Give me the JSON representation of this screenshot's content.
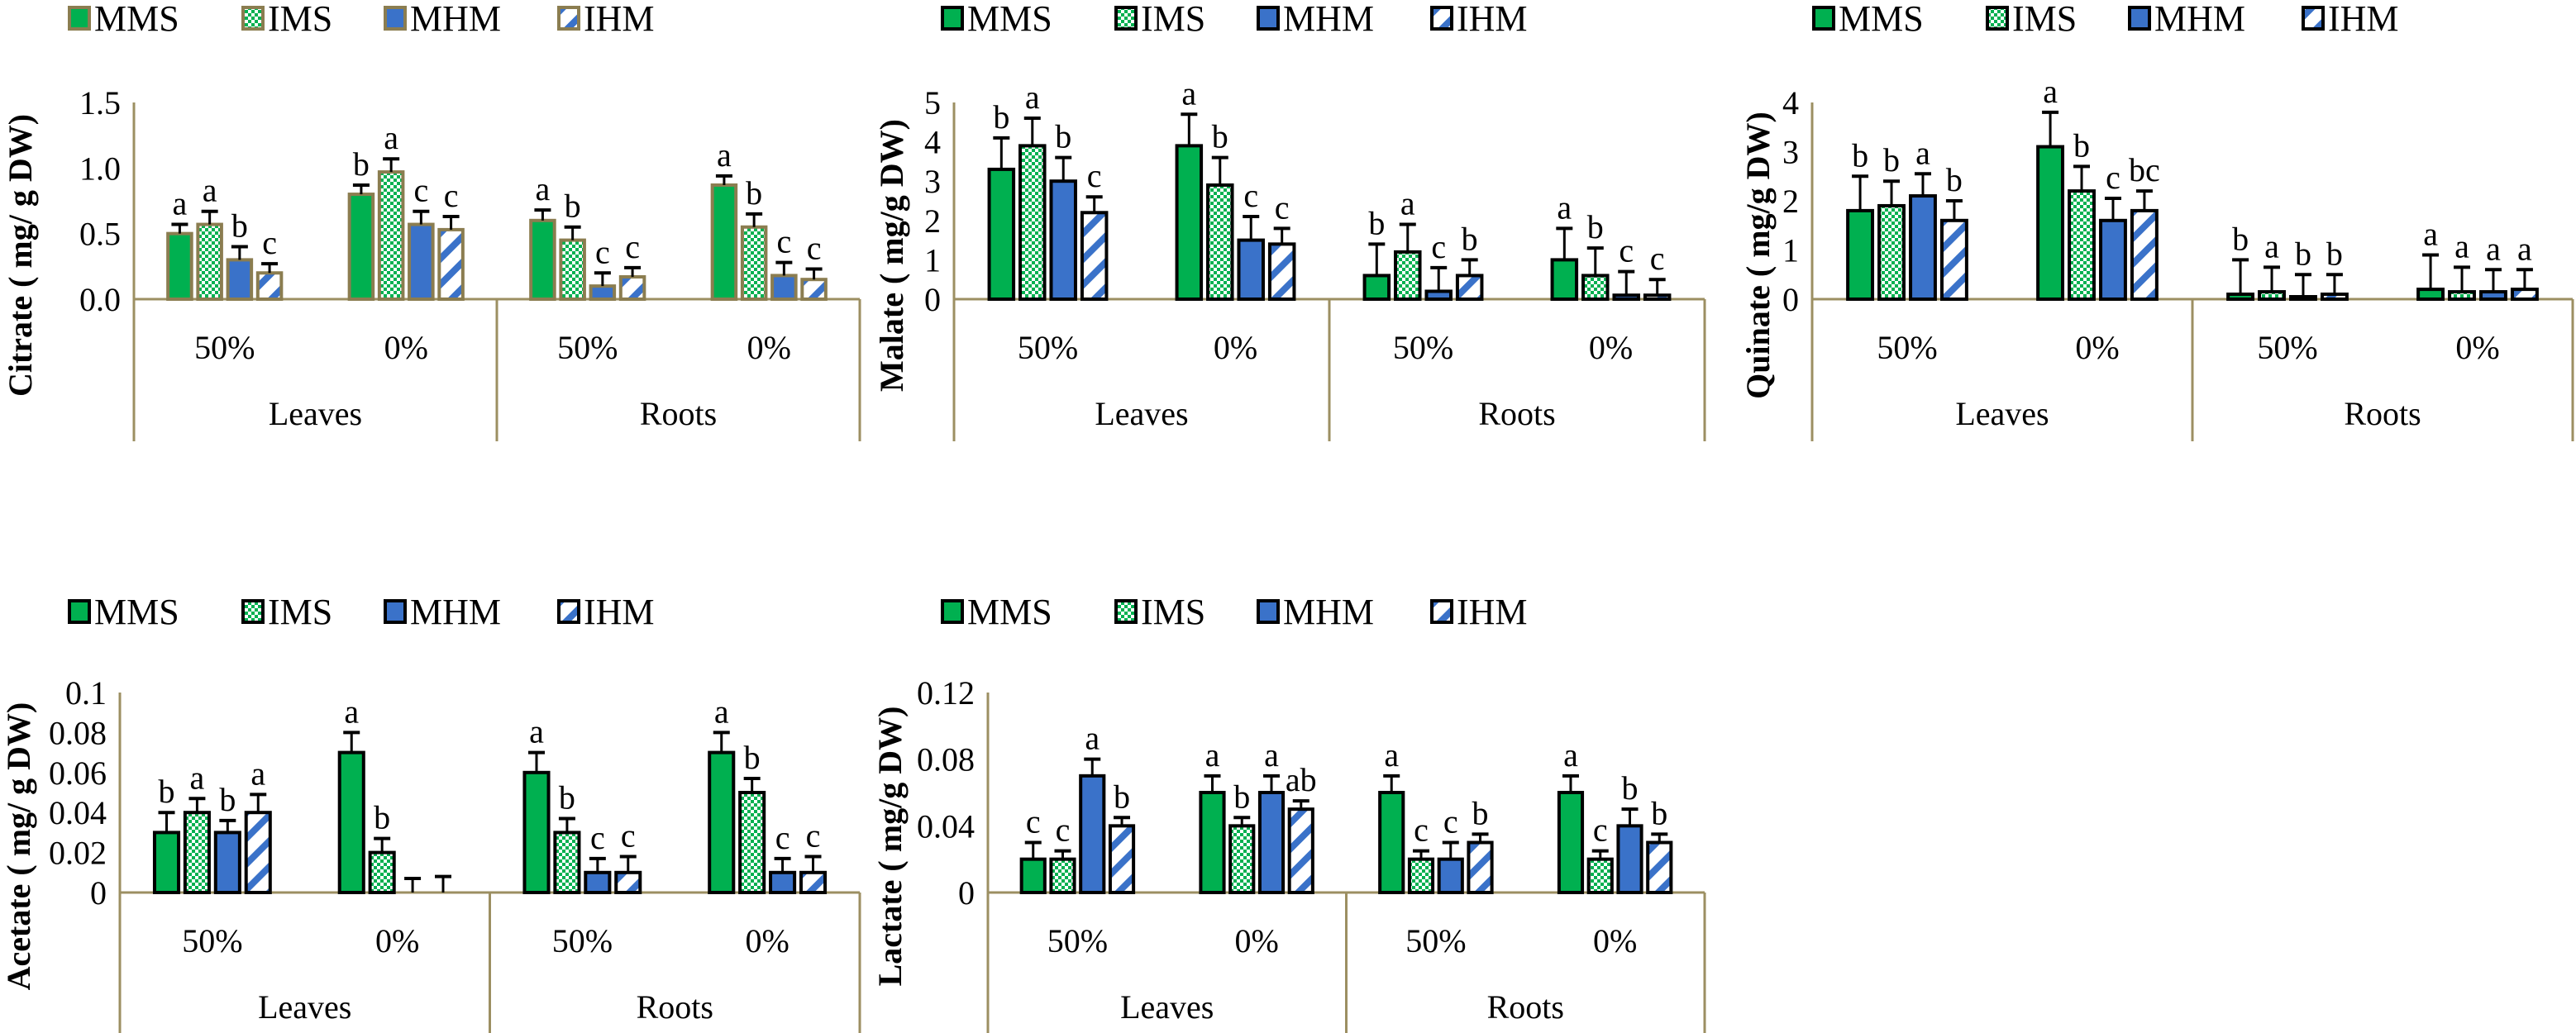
{
  "colors": {
    "MMS": "#00b050",
    "IMS": "#00b050",
    "MHM": "#3a72c9",
    "IHM": "#3a72c9",
    "axis": "#9c8f62"
  },
  "chart_data": [
    {
      "type": "bar",
      "title": "",
      "ylabel": "Citrate ( mg/ g DW)",
      "xlabel": "",
      "ylim": [
        0,
        1.5
      ],
      "yticks": [
        "0.0",
        "0.5",
        "1.0",
        "1.5"
      ],
      "ytick_values": [
        0,
        0.5,
        1.0,
        1.5
      ],
      "legend": [
        "MMS",
        "IMS",
        "MHM",
        "IHM"
      ],
      "legend_position": "top",
      "groups": [
        "Leaves",
        "Roots"
      ],
      "categories": [
        "50%",
        "0%",
        "50%",
        "0%"
      ],
      "series": [
        {
          "name": "MMS",
          "values": [
            0.5,
            0.8,
            0.6,
            0.87
          ],
          "errors": [
            0.07,
            0.07,
            0.08,
            0.07
          ],
          "letters": [
            "a",
            "b",
            "a",
            "a"
          ]
        },
        {
          "name": "IMS",
          "values": [
            0.57,
            0.97,
            0.45,
            0.55
          ],
          "errors": [
            0.1,
            0.1,
            0.1,
            0.1
          ],
          "letters": [
            "a",
            "a",
            "b",
            "b"
          ]
        },
        {
          "name": "MHM",
          "values": [
            0.3,
            0.57,
            0.1,
            0.18
          ],
          "errors": [
            0.1,
            0.1,
            0.1,
            0.1
          ],
          "letters": [
            "b",
            "c",
            "c",
            "c"
          ]
        },
        {
          "name": "IHM",
          "values": [
            0.2,
            0.53,
            0.17,
            0.15
          ],
          "errors": [
            0.07,
            0.1,
            0.07,
            0.08
          ],
          "letters": [
            "c",
            "c",
            "c",
            "c"
          ]
        }
      ]
    },
    {
      "type": "bar",
      "title": "",
      "ylabel": "Malate ( mg/g DW)",
      "xlabel": "",
      "ylim": [
        0,
        5
      ],
      "yticks": [
        "0",
        "1",
        "2",
        "3",
        "4",
        "5"
      ],
      "ytick_values": [
        0,
        1,
        2,
        3,
        4,
        5
      ],
      "legend": [
        "MMS",
        "IMS",
        "MHM",
        "IHM"
      ],
      "legend_position": "top",
      "groups": [
        "Leaves",
        "Roots"
      ],
      "categories": [
        "50%",
        "0%",
        "50%",
        "0%"
      ],
      "series": [
        {
          "name": "MMS",
          "values": [
            3.3,
            3.9,
            0.6,
            1.0
          ],
          "errors": [
            0.8,
            0.8,
            0.8,
            0.8
          ],
          "letters": [
            "b",
            "a",
            "b",
            "a"
          ]
        },
        {
          "name": "IMS",
          "values": [
            3.9,
            2.9,
            1.2,
            0.6
          ],
          "errors": [
            0.7,
            0.7,
            0.7,
            0.7
          ],
          "letters": [
            "a",
            "b",
            "a",
            "b"
          ]
        },
        {
          "name": "MHM",
          "values": [
            3.0,
            1.5,
            0.2,
            0.1
          ],
          "errors": [
            0.6,
            0.6,
            0.6,
            0.6
          ],
          "letters": [
            "b",
            "c",
            "c",
            "c"
          ]
        },
        {
          "name": "IHM",
          "values": [
            2.2,
            1.4,
            0.6,
            0.1
          ],
          "errors": [
            0.4,
            0.4,
            0.4,
            0.4
          ],
          "letters": [
            "c",
            "c",
            "b",
            "c"
          ]
        }
      ]
    },
    {
      "type": "bar",
      "title": "",
      "ylabel": "Quinate ( mg/g DW)",
      "xlabel": "",
      "ylim": [
        0,
        4
      ],
      "yticks": [
        "0",
        "1",
        "2",
        "3",
        "4"
      ],
      "ytick_values": [
        0,
        1,
        2,
        3,
        4
      ],
      "legend": [
        "MMS",
        "IMS",
        "MHM",
        "IHM"
      ],
      "legend_position": "top",
      "groups": [
        "Leaves",
        "Roots"
      ],
      "categories": [
        "50%",
        "0%",
        "50%",
        "0%"
      ],
      "series": [
        {
          "name": "MMS",
          "values": [
            1.8,
            3.1,
            0.1,
            0.2
          ],
          "errors": [
            0.7,
            0.7,
            0.7,
            0.7
          ],
          "letters": [
            "b",
            "a",
            "b",
            "a"
          ]
        },
        {
          "name": "IMS",
          "values": [
            1.9,
            2.2,
            0.15,
            0.15
          ],
          "errors": [
            0.5,
            0.5,
            0.5,
            0.5
          ],
          "letters": [
            "b",
            "b",
            "a",
            "a"
          ]
        },
        {
          "name": "MHM",
          "values": [
            2.1,
            1.6,
            0.05,
            0.15
          ],
          "errors": [
            0.45,
            0.45,
            0.45,
            0.45
          ],
          "letters": [
            "a",
            "c",
            "b",
            "a"
          ]
        },
        {
          "name": "IHM",
          "values": [
            1.6,
            1.8,
            0.1,
            0.2
          ],
          "errors": [
            0.4,
            0.4,
            0.4,
            0.4
          ],
          "letters": [
            "b",
            "bc",
            "b",
            "a"
          ]
        }
      ]
    },
    {
      "type": "bar",
      "title": "",
      "ylabel": "Acetate ( mg/ g DW)",
      "xlabel": "",
      "ylim": [
        0,
        0.1
      ],
      "yticks": [
        "0",
        "0.02",
        "0.04",
        "0.06",
        "0.08",
        "0.1"
      ],
      "ytick_values": [
        0,
        0.02,
        0.04,
        0.06,
        0.08,
        0.1
      ],
      "legend": [
        "MMS",
        "IMS",
        "MHM",
        "IHM"
      ],
      "legend_position": "top",
      "groups": [
        "Leaves",
        "Roots"
      ],
      "categories": [
        "50%",
        "0%",
        "50%",
        "0%"
      ],
      "series": [
        {
          "name": "MMS",
          "values": [
            0.03,
            0.07,
            0.06,
            0.07
          ],
          "errors": [
            0.01,
            0.01,
            0.01,
            0.01
          ],
          "letters": [
            "b",
            "a",
            "a",
            "a"
          ]
        },
        {
          "name": "IMS",
          "values": [
            0.04,
            0.02,
            0.03,
            0.05
          ],
          "errors": [
            0.007,
            0.007,
            0.007,
            0.007
          ],
          "letters": [
            "a",
            "b",
            "b",
            "b"
          ]
        },
        {
          "name": "MHM",
          "values": [
            0.03,
            0.0,
            0.01,
            0.01
          ],
          "errors": [
            0.006,
            0.007,
            0.007,
            0.007
          ],
          "letters": [
            "b",
            "",
            "c",
            "c"
          ]
        },
        {
          "name": "IHM",
          "values": [
            0.04,
            0.0,
            0.01,
            0.01
          ],
          "errors": [
            0.009,
            0.008,
            0.008,
            0.008
          ],
          "letters": [
            "a",
            "",
            "c",
            "c"
          ]
        }
      ]
    },
    {
      "type": "bar",
      "title": "",
      "ylabel": "Lactate ( mg/g DW)",
      "xlabel": "",
      "ylim": [
        0,
        0.12
      ],
      "yticks": [
        "0",
        "0.04",
        "0.08",
        "0.12"
      ],
      "ytick_values": [
        0,
        0.04,
        0.08,
        0.12
      ],
      "legend": [
        "MMS",
        "IMS",
        "MHM",
        "IHM"
      ],
      "legend_position": "top",
      "groups": [
        "Leaves",
        "Roots"
      ],
      "categories": [
        "50%",
        "0%",
        "50%",
        "0%"
      ],
      "series": [
        {
          "name": "MMS",
          "values": [
            0.02,
            0.06,
            0.06,
            0.06
          ],
          "errors": [
            0.01,
            0.01,
            0.01,
            0.01
          ],
          "letters": [
            "c",
            "a",
            "a",
            "a"
          ]
        },
        {
          "name": "IMS",
          "values": [
            0.02,
            0.04,
            0.02,
            0.02
          ],
          "errors": [
            0.005,
            0.005,
            0.005,
            0.005
          ],
          "letters": [
            "c",
            "b",
            "c",
            "c"
          ]
        },
        {
          "name": "MHM",
          "values": [
            0.07,
            0.06,
            0.02,
            0.04
          ],
          "errors": [
            0.01,
            0.01,
            0.01,
            0.01
          ],
          "letters": [
            "a",
            "a",
            "c",
            "b"
          ]
        },
        {
          "name": "IHM",
          "values": [
            0.04,
            0.05,
            0.03,
            0.03
          ],
          "errors": [
            0.005,
            0.005,
            0.005,
            0.005
          ],
          "letters": [
            "b",
            "ab",
            "b",
            "b"
          ]
        }
      ]
    }
  ]
}
